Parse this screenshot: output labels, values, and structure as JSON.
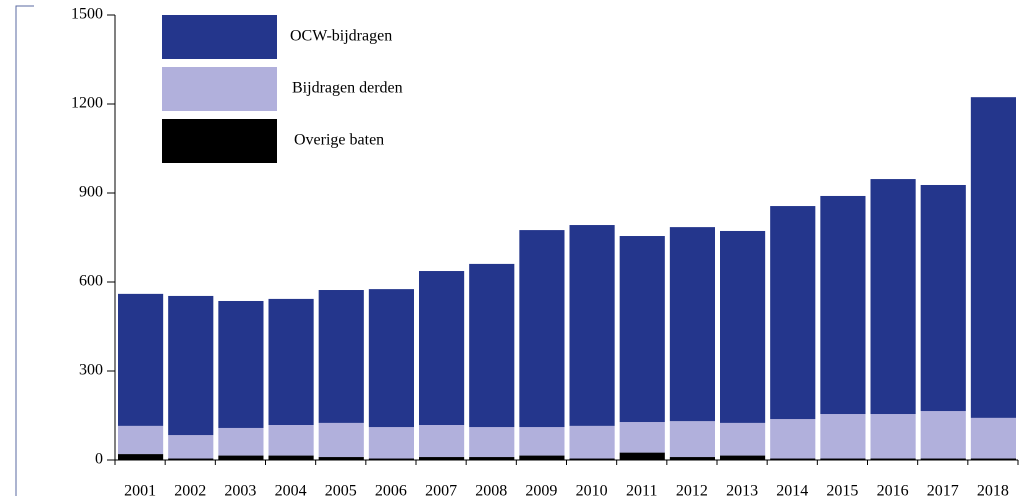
{
  "chart_data": {
    "type": "bar",
    "stacked": true,
    "categories": [
      "2001",
      "2002",
      "2003",
      "2004",
      "2005",
      "2006",
      "2007",
      "2008",
      "2009",
      "2010",
      "2011",
      "2012",
      "2013",
      "2014",
      "2015",
      "2016",
      "2017",
      "2018"
    ],
    "series": [
      {
        "name": "Overige baten",
        "color": "#000000",
        "values": [
          20,
          5,
          15,
          15,
          10,
          5,
          10,
          10,
          15,
          5,
          25,
          10,
          15,
          5,
          5,
          5,
          5,
          5
        ]
      },
      {
        "name": "Bijdragen derden",
        "color": "#b1b0dc",
        "values": [
          95,
          79,
          93,
          103,
          115,
          106,
          108,
          101,
          96,
          110,
          103,
          121,
          110,
          133,
          150,
          150,
          160,
          137
        ]
      },
      {
        "name": "OCW-bijdragen",
        "color": "#24368c",
        "values": [
          445,
          469,
          428,
          425,
          448,
          465,
          519,
          550,
          664,
          677,
          627,
          654,
          647,
          718,
          735,
          792,
          762,
          1081
        ]
      }
    ],
    "legend_order": [
      2,
      1,
      0
    ],
    "ylim": [
      0,
      1500
    ],
    "yticks": [
      0,
      300,
      600,
      900,
      1200,
      1500
    ]
  }
}
